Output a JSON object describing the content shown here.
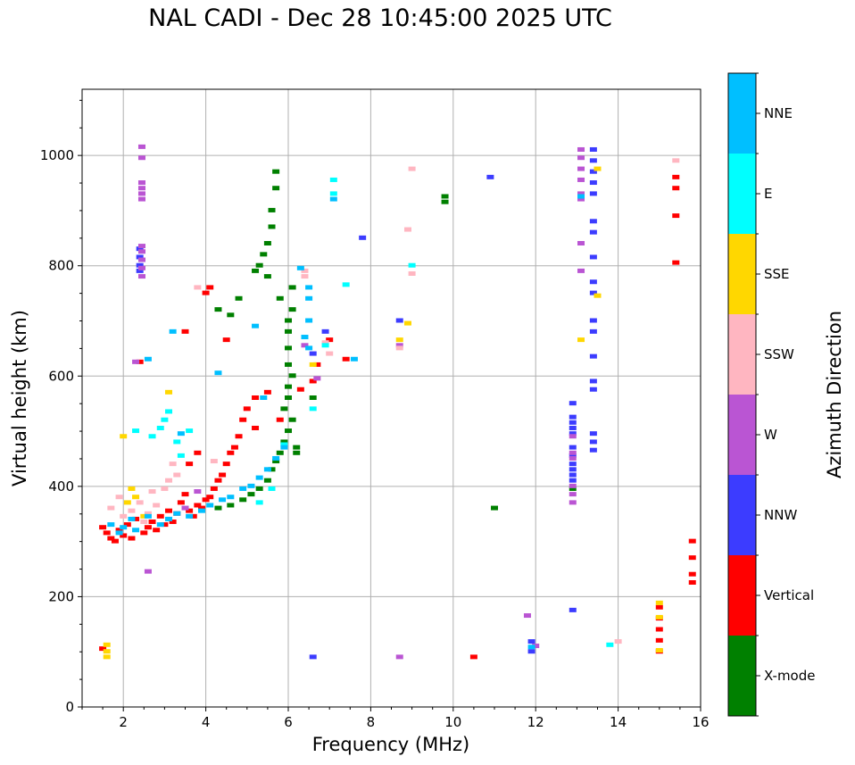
{
  "chart_data": {
    "type": "scatter",
    "title": "NAL CADI - Dec 28 10:45:00 2025 UTC",
    "xlabel": "Frequency (MHz)",
    "ylabel": "Virtual height (km)",
    "xlim": [
      1,
      16
    ],
    "ylim": [
      0,
      1120
    ],
    "xticks": [
      2,
      4,
      6,
      8,
      10,
      12,
      14,
      16
    ],
    "yticks": [
      0,
      200,
      400,
      600,
      800,
      1000
    ],
    "grid": true,
    "colorbar": {
      "label": "Azimuth Direction",
      "placement": "right",
      "categories": [
        {
          "name": "X-mode",
          "color": "#008000"
        },
        {
          "name": "Vertical",
          "color": "#ff0000"
        },
        {
          "name": "NNW",
          "color": "#3c3cff"
        },
        {
          "name": "W",
          "color": "#ba55d3"
        },
        {
          "name": "SSW",
          "color": "#ffb6c1"
        },
        {
          "name": "SSE",
          "color": "#ffd700"
        },
        {
          "name": "E",
          "color": "#00ffff"
        },
        {
          "name": "NNE",
          "color": "#00bfff"
        }
      ]
    },
    "series": [
      {
        "name": "Vertical",
        "points": [
          [
            1.5,
            325
          ],
          [
            1.6,
            315
          ],
          [
            1.7,
            305
          ],
          [
            1.8,
            300
          ],
          [
            1.9,
            320
          ],
          [
            2.0,
            310
          ],
          [
            2.1,
            330
          ],
          [
            2.2,
            305
          ],
          [
            2.3,
            340
          ],
          [
            2.5,
            315
          ],
          [
            2.6,
            325
          ],
          [
            2.7,
            335
          ],
          [
            2.8,
            320
          ],
          [
            2.9,
            345
          ],
          [
            3.0,
            330
          ],
          [
            3.1,
            355
          ],
          [
            3.2,
            335
          ],
          [
            3.3,
            350
          ],
          [
            3.4,
            370
          ],
          [
            3.5,
            385
          ],
          [
            3.6,
            355
          ],
          [
            3.7,
            345
          ],
          [
            3.8,
            365
          ],
          [
            3.9,
            360
          ],
          [
            4.0,
            375
          ],
          [
            4.1,
            380
          ],
          [
            4.2,
            395
          ],
          [
            4.3,
            410
          ],
          [
            4.4,
            420
          ],
          [
            4.5,
            440
          ],
          [
            4.6,
            460
          ],
          [
            4.7,
            470
          ],
          [
            4.8,
            490
          ],
          [
            4.9,
            520
          ],
          [
            5.0,
            540
          ],
          [
            5.2,
            560
          ],
          [
            5.5,
            570
          ],
          [
            3.6,
            440
          ],
          [
            3.8,
            460
          ],
          [
            4.0,
            750
          ],
          [
            3.5,
            680
          ],
          [
            4.1,
            760
          ],
          [
            4.5,
            665
          ],
          [
            5.2,
            505
          ],
          [
            6.3,
            575
          ],
          [
            6.7,
            620
          ],
          [
            7.0,
            665
          ],
          [
            7.4,
            630
          ],
          [
            2.4,
            625
          ],
          [
            1.5,
            105
          ],
          [
            10.5,
            90
          ],
          [
            15.0,
            180
          ],
          [
            15.0,
            160
          ],
          [
            15.0,
            140
          ],
          [
            15.0,
            120
          ],
          [
            15.0,
            100
          ],
          [
            15.8,
            300
          ],
          [
            15.8,
            270
          ],
          [
            15.8,
            240
          ],
          [
            15.8,
            225
          ],
          [
            15.4,
            960
          ],
          [
            15.4,
            940
          ],
          [
            15.4,
            890
          ],
          [
            15.4,
            805
          ],
          [
            6.6,
            590
          ],
          [
            5.8,
            520
          ]
        ]
      },
      {
        "name": "X-mode",
        "points": [
          [
            4.3,
            360
          ],
          [
            4.6,
            365
          ],
          [
            4.9,
            375
          ],
          [
            5.1,
            385
          ],
          [
            5.3,
            395
          ],
          [
            5.5,
            410
          ],
          [
            5.6,
            430
          ],
          [
            5.7,
            445
          ],
          [
            5.8,
            460
          ],
          [
            5.9,
            480
          ],
          [
            6.0,
            500
          ],
          [
            6.1,
            520
          ],
          [
            6.2,
            470
          ],
          [
            6.2,
            460
          ],
          [
            5.9,
            540
          ],
          [
            6.0,
            560
          ],
          [
            6.0,
            580
          ],
          [
            6.1,
            600
          ],
          [
            6.0,
            620
          ],
          [
            6.0,
            650
          ],
          [
            6.0,
            680
          ],
          [
            6.0,
            700
          ],
          [
            6.1,
            720
          ],
          [
            6.1,
            760
          ],
          [
            5.8,
            740
          ],
          [
            5.5,
            780
          ],
          [
            5.3,
            800
          ],
          [
            5.4,
            820
          ],
          [
            5.5,
            840
          ],
          [
            5.6,
            870
          ],
          [
            5.6,
            900
          ],
          [
            5.7,
            940
          ],
          [
            5.7,
            970
          ],
          [
            4.8,
            740
          ],
          [
            4.6,
            710
          ],
          [
            4.3,
            720
          ],
          [
            5.2,
            790
          ],
          [
            6.6,
            560
          ],
          [
            9.8,
            925
          ],
          [
            9.8,
            915
          ],
          [
            11.0,
            360
          ],
          [
            12.9,
            395
          ]
        ]
      },
      {
        "name": "NNW",
        "points": [
          [
            2.4,
            830
          ],
          [
            2.4,
            815
          ],
          [
            2.4,
            800
          ],
          [
            2.4,
            790
          ],
          [
            13.4,
            1010
          ],
          [
            13.4,
            990
          ],
          [
            13.4,
            970
          ],
          [
            13.4,
            950
          ],
          [
            13.4,
            930
          ],
          [
            13.4,
            880
          ],
          [
            13.4,
            860
          ],
          [
            13.4,
            815
          ],
          [
            13.4,
            770
          ],
          [
            13.4,
            750
          ],
          [
            13.4,
            700
          ],
          [
            13.4,
            680
          ],
          [
            13.4,
            635
          ],
          [
            13.4,
            590
          ],
          [
            13.4,
            575
          ],
          [
            13.4,
            495
          ],
          [
            13.4,
            480
          ],
          [
            13.4,
            465
          ],
          [
            12.9,
            550
          ],
          [
            12.9,
            525
          ],
          [
            12.9,
            515
          ],
          [
            12.9,
            505
          ],
          [
            12.9,
            495
          ],
          [
            12.9,
            470
          ],
          [
            12.9,
            455
          ],
          [
            12.9,
            440
          ],
          [
            12.9,
            430
          ],
          [
            12.9,
            420
          ],
          [
            12.9,
            410
          ],
          [
            10.9,
            960
          ],
          [
            7.8,
            850
          ],
          [
            8.7,
            700
          ],
          [
            6.9,
            680
          ],
          [
            6.6,
            640
          ],
          [
            12.9,
            175
          ],
          [
            11.9,
            118
          ],
          [
            11.9,
            100
          ],
          [
            6.6,
            90
          ]
        ]
      },
      {
        "name": "W",
        "points": [
          [
            2.45,
            1015
          ],
          [
            2.45,
            995
          ],
          [
            2.45,
            950
          ],
          [
            2.45,
            940
          ],
          [
            2.45,
            930
          ],
          [
            2.45,
            920
          ],
          [
            2.45,
            835
          ],
          [
            2.45,
            825
          ],
          [
            2.45,
            810
          ],
          [
            2.45,
            795
          ],
          [
            2.45,
            780
          ],
          [
            13.1,
            1010
          ],
          [
            13.1,
            995
          ],
          [
            13.1,
            975
          ],
          [
            13.1,
            955
          ],
          [
            13.1,
            930
          ],
          [
            13.1,
            920
          ],
          [
            13.1,
            840
          ],
          [
            13.1,
            790
          ],
          [
            12.9,
            490
          ],
          [
            12.9,
            460
          ],
          [
            12.9,
            450
          ],
          [
            12.9,
            400
          ],
          [
            12.9,
            385
          ],
          [
            12.9,
            370
          ],
          [
            2.6,
            245
          ],
          [
            2.3,
            625
          ],
          [
            8.7,
            655
          ],
          [
            11.8,
            165
          ],
          [
            12.0,
            110
          ],
          [
            8.7,
            90
          ],
          [
            6.4,
            655
          ],
          [
            6.7,
            595
          ],
          [
            3.8,
            390
          ],
          [
            3.5,
            360
          ]
        ]
      },
      {
        "name": "SSW",
        "points": [
          [
            1.7,
            360
          ],
          [
            1.9,
            380
          ],
          [
            2.0,
            345
          ],
          [
            2.2,
            355
          ],
          [
            2.4,
            370
          ],
          [
            2.5,
            335
          ],
          [
            2.6,
            350
          ],
          [
            2.8,
            365
          ],
          [
            2.7,
            390
          ],
          [
            3.0,
            395
          ],
          [
            3.1,
            410
          ],
          [
            3.3,
            420
          ],
          [
            3.2,
            440
          ],
          [
            6.4,
            790
          ],
          [
            6.4,
            780
          ],
          [
            9.0,
            975
          ],
          [
            8.9,
            865
          ],
          [
            9.0,
            785
          ],
          [
            8.7,
            650
          ],
          [
            7.0,
            640
          ],
          [
            6.9,
            660
          ],
          [
            15.4,
            990
          ],
          [
            14.0,
            118
          ],
          [
            3.8,
            760
          ],
          [
            4.2,
            445
          ]
        ]
      },
      {
        "name": "SSE",
        "points": [
          [
            1.6,
            112
          ],
          [
            1.6,
            100
          ],
          [
            1.6,
            90
          ],
          [
            2.0,
            490
          ],
          [
            2.1,
            370
          ],
          [
            2.2,
            395
          ],
          [
            2.5,
            345
          ],
          [
            3.1,
            570
          ],
          [
            13.5,
            745
          ],
          [
            13.5,
            975
          ],
          [
            13.1,
            665
          ],
          [
            8.7,
            665
          ],
          [
            8.9,
            695
          ],
          [
            15.0,
            188
          ],
          [
            15.0,
            102
          ],
          [
            15.0,
            162
          ],
          [
            6.6,
            620
          ],
          [
            2.3,
            380
          ]
        ]
      },
      {
        "name": "E",
        "points": [
          [
            2.7,
            490
          ],
          [
            2.9,
            505
          ],
          [
            3.0,
            520
          ],
          [
            3.1,
            535
          ],
          [
            3.3,
            480
          ],
          [
            3.4,
            455
          ],
          [
            3.6,
            500
          ],
          [
            7.1,
            955
          ],
          [
            7.1,
            930
          ],
          [
            6.9,
            655
          ],
          [
            7.4,
            765
          ],
          [
            9.0,
            800
          ],
          [
            6.6,
            540
          ],
          [
            5.9,
            475
          ],
          [
            2.3,
            500
          ],
          [
            13.8,
            112
          ],
          [
            5.3,
            370
          ],
          [
            5.6,
            395
          ]
        ]
      },
      {
        "name": "NNE",
        "points": [
          [
            1.7,
            330
          ],
          [
            1.9,
            315
          ],
          [
            2.0,
            325
          ],
          [
            2.2,
            340
          ],
          [
            2.3,
            320
          ],
          [
            2.6,
            345
          ],
          [
            2.9,
            330
          ],
          [
            3.1,
            340
          ],
          [
            3.3,
            350
          ],
          [
            3.6,
            345
          ],
          [
            3.9,
            355
          ],
          [
            4.1,
            365
          ],
          [
            4.4,
            375
          ],
          [
            4.6,
            380
          ],
          [
            4.9,
            395
          ],
          [
            5.1,
            400
          ],
          [
            5.3,
            415
          ],
          [
            5.5,
            430
          ],
          [
            5.7,
            450
          ],
          [
            5.9,
            470
          ],
          [
            6.5,
            760
          ],
          [
            6.5,
            740
          ],
          [
            6.5,
            700
          ],
          [
            6.4,
            670
          ],
          [
            6.5,
            650
          ],
          [
            7.1,
            920
          ],
          [
            6.3,
            795
          ],
          [
            7.6,
            630
          ],
          [
            3.2,
            680
          ],
          [
            2.6,
            630
          ],
          [
            4.3,
            605
          ],
          [
            5.4,
            560
          ],
          [
            5.2,
            690
          ],
          [
            13.1,
            925
          ],
          [
            11.9,
            108
          ],
          [
            3.4,
            495
          ]
        ]
      }
    ]
  }
}
